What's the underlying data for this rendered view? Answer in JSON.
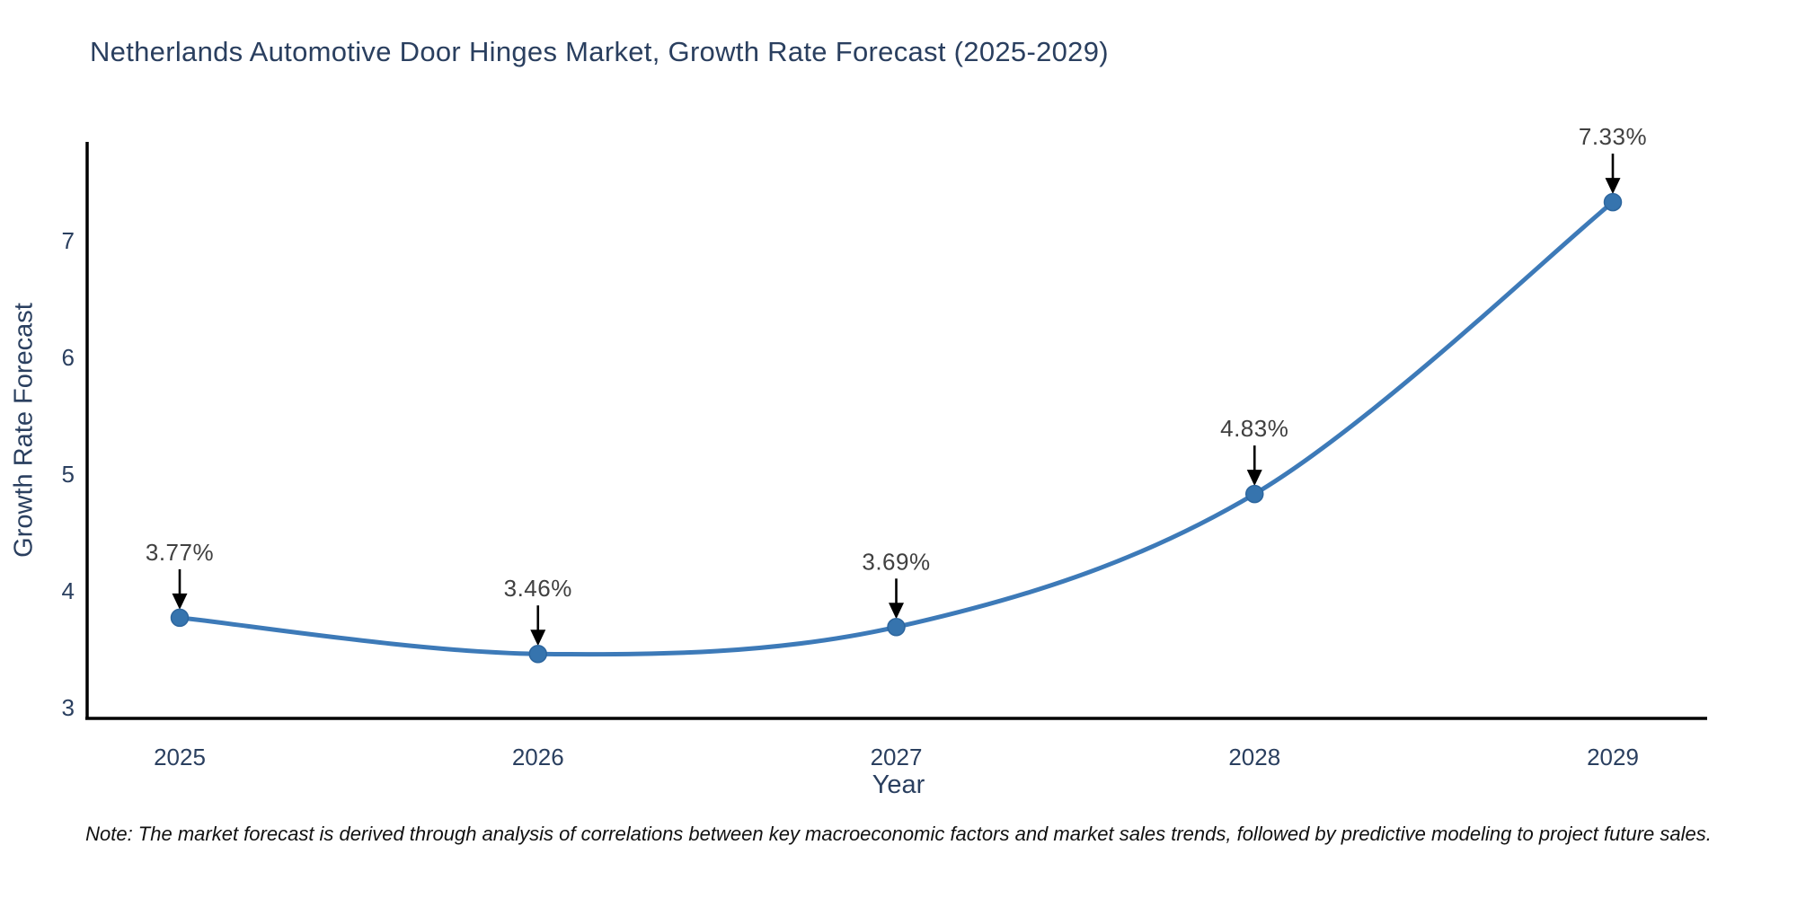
{
  "title": "Netherlands Automotive Door Hinges Market, Growth Rate Forecast (2025-2029)",
  "note": "Note: The market forecast is derived through analysis of correlations between key macroeconomic factors and market sales trends, followed by predictive modeling to project future sales.",
  "chart_data": {
    "type": "line",
    "title": "Netherlands Automotive Door Hinges Market, Growth Rate Forecast (2025-2029)",
    "xlabel": "Year",
    "ylabel": "Growth Rate Forecast",
    "categories": [
      2025,
      2026,
      2027,
      2028,
      2029
    ],
    "values": [
      3.77,
      3.46,
      3.69,
      4.83,
      7.33
    ],
    "point_labels": [
      "3.77%",
      "3.46%",
      "3.69%",
      "4.83%",
      "7.33%"
    ],
    "yticks": [
      3,
      4,
      5,
      6,
      7
    ],
    "ylim": [
      2.91,
      7.93
    ],
    "xlim": [
      2024.74,
      2029.26
    ],
    "grid": false,
    "line_shape": "spline",
    "legend": "none",
    "annotations_style": "arrow-down-to-point",
    "colors": {
      "line": "#3d7ab8",
      "marker_fill": "#3674ae",
      "marker_stroke": "#2d669e",
      "axis_line": "#000000",
      "axis_text": "#2a3f5f",
      "annotation_text": "#404040",
      "arrow": "#000000",
      "background": "#ffffff"
    }
  }
}
